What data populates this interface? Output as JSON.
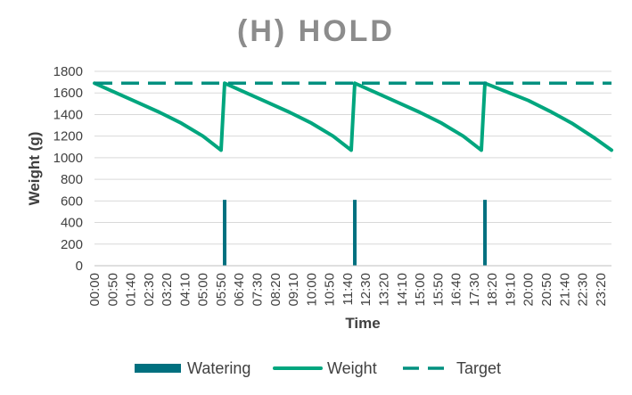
{
  "chart_data": {
    "type": "line",
    "title": "(H) HOLD",
    "xlabel": "Time",
    "ylabel": "Weight (g)",
    "ylim": [
      0,
      1800
    ],
    "yticks": [
      "0",
      "200",
      "400",
      "600",
      "800",
      "1000",
      "1200",
      "1400",
      "1600",
      "1800"
    ],
    "xticks": [
      "00:00",
      "00:50",
      "01:40",
      "02:30",
      "03:20",
      "04:10",
      "05:00",
      "05:50",
      "06:40",
      "07:30",
      "08:20",
      "09:10",
      "10:00",
      "10:50",
      "11:40",
      "12:30",
      "13:20",
      "14:10",
      "15:00",
      "15:50",
      "16:40",
      "17:30",
      "18:20",
      "19:10",
      "20:00",
      "20:50",
      "21:40",
      "22:30",
      "23:20"
    ],
    "grid": "horizontal",
    "legend_position": "bottom",
    "colors": {
      "watering": "#00707f",
      "weight": "#00a67e",
      "target": "#00907f"
    },
    "series": [
      {
        "name": "Watering",
        "kind": "bar",
        "points": [
          {
            "x": "06:00",
            "y": 610
          },
          {
            "x": "12:00",
            "y": 610
          },
          {
            "x": "18:00",
            "y": 610
          }
        ]
      },
      {
        "name": "Weight",
        "kind": "line",
        "points": [
          {
            "x": "00:00",
            "y": 1690
          },
          {
            "x": "01:00",
            "y": 1600
          },
          {
            "x": "02:00",
            "y": 1510
          },
          {
            "x": "03:00",
            "y": 1420
          },
          {
            "x": "04:00",
            "y": 1320
          },
          {
            "x": "05:00",
            "y": 1200
          },
          {
            "x": "05:50",
            "y": 1070
          },
          {
            "x": "06:00",
            "y": 1690
          },
          {
            "x": "07:00",
            "y": 1600
          },
          {
            "x": "08:00",
            "y": 1510
          },
          {
            "x": "09:00",
            "y": 1420
          },
          {
            "x": "10:00",
            "y": 1320
          },
          {
            "x": "11:00",
            "y": 1200
          },
          {
            "x": "11:50",
            "y": 1070
          },
          {
            "x": "12:00",
            "y": 1690
          },
          {
            "x": "13:00",
            "y": 1600
          },
          {
            "x": "14:00",
            "y": 1510
          },
          {
            "x": "15:00",
            "y": 1420
          },
          {
            "x": "16:00",
            "y": 1320
          },
          {
            "x": "17:00",
            "y": 1200
          },
          {
            "x": "17:50",
            "y": 1070
          },
          {
            "x": "18:00",
            "y": 1690
          },
          {
            "x": "19:00",
            "y": 1610
          },
          {
            "x": "20:00",
            "y": 1530
          },
          {
            "x": "21:00",
            "y": 1430
          },
          {
            "x": "22:00",
            "y": 1320
          },
          {
            "x": "23:00",
            "y": 1190
          },
          {
            "x": "23:50",
            "y": 1070
          }
        ]
      },
      {
        "name": "Target",
        "kind": "dashed-line",
        "points": [
          {
            "x": "00:00",
            "y": 1690
          },
          {
            "x": "23:50",
            "y": 1690
          }
        ]
      }
    ]
  }
}
